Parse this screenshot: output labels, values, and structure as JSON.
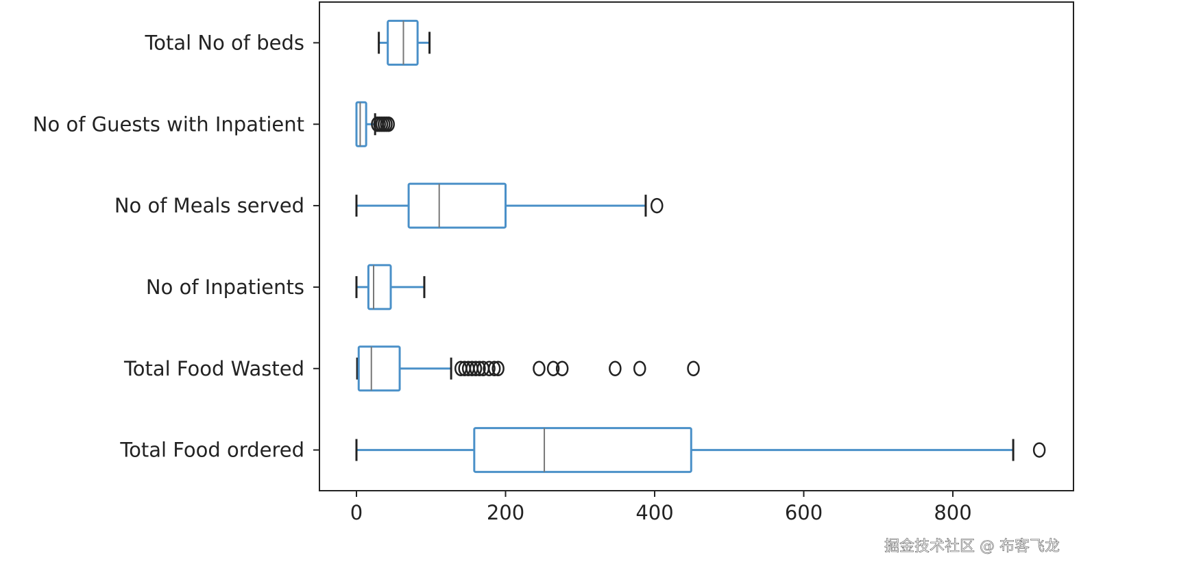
{
  "chart_data": {
    "type": "boxplot",
    "orientation": "horizontal",
    "title": "",
    "xlabel": "",
    "ylabel": "",
    "xlim": [
      -50,
      960
    ],
    "xticks": [
      0,
      200,
      400,
      600,
      800
    ],
    "grid": false,
    "colors": {
      "box": "#4a90c8",
      "median": "#777777",
      "cap": "#222222",
      "flier": "#222222"
    },
    "series": [
      {
        "name": "Total No of beds",
        "whislo": 30,
        "q1": 42,
        "med": 63,
        "q3": 82,
        "whishi": 98,
        "fliers": []
      },
      {
        "name": "No of Guests with Inpatient",
        "whislo": 0,
        "q1": 0,
        "med": 5,
        "q3": 13,
        "whishi": 25,
        "fliers": [
          28,
          31,
          34,
          37,
          40,
          43
        ]
      },
      {
        "name": "No of Meals served",
        "whislo": 0,
        "q1": 70,
        "med": 111,
        "q3": 200,
        "whishi": 388,
        "fliers": [
          403
        ]
      },
      {
        "name": "No of Inpatients",
        "whislo": 0,
        "q1": 16,
        "med": 23,
        "q3": 46,
        "whishi": 91,
        "fliers": []
      },
      {
        "name": "Total Food Wasted",
        "whislo": 1,
        "q1": 3,
        "med": 20,
        "q3": 58,
        "whishi": 127,
        "fliers": [
          140,
          145,
          150,
          155,
          160,
          165,
          170,
          178,
          185,
          190,
          245,
          264,
          276,
          347,
          380,
          452
        ]
      },
      {
        "name": "Total Food ordered",
        "whislo": 0,
        "q1": 158,
        "med": 252,
        "q3": 449,
        "whishi": 881,
        "fliers": [
          916
        ]
      }
    ]
  },
  "watermark": "掘金技术社区 @ 布客飞龙"
}
